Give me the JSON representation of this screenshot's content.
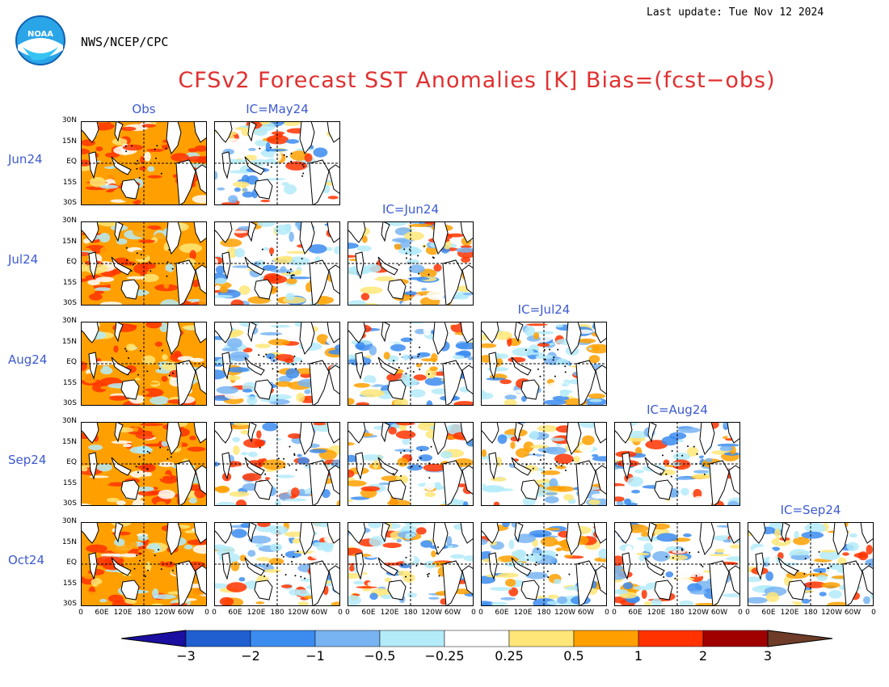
{
  "header": {
    "last_update": "Last update: Tue Nov 12 2024",
    "org": "NWS/NCEP/CPC",
    "title": "CFSv2 Forecast SST Anomalies [K] Bias=(fcst−obs)",
    "logo_text": "NOAA"
  },
  "columns": [
    "Obs",
    "IC=May24",
    "IC=Jun24",
    "IC=Jul24",
    "IC=Aug24",
    "IC=Sep24"
  ],
  "rows": [
    "Jun24",
    "Jul24",
    "Aug24",
    "Sep24",
    "Oct24"
  ],
  "lat_ticks": [
    "30N",
    "15N",
    "EQ",
    "15S",
    "30S"
  ],
  "lon_ticks": [
    "0",
    "60E",
    "120E",
    "180",
    "120W",
    "60W",
    "0"
  ],
  "colorbar": {
    "labels": [
      "−3",
      "−2",
      "−1",
      "−0.5",
      "−0.25",
      "0.25",
      "0.5",
      "1",
      "2",
      "3"
    ],
    "colors": [
      "#1a0fa0",
      "#1f5fd0",
      "#3c8cf0",
      "#78b4f2",
      "#b4ebf9",
      "#ffffff",
      "#ffe678",
      "#ffa000",
      "#ff3200",
      "#a00000",
      "#6e3c28"
    ]
  },
  "chart_data": {
    "type": "heatmap",
    "title": "CFSv2 Forecast SST Anomalies [K] Bias=(fcst−obs)",
    "units": "K",
    "columns": [
      "Obs",
      "IC=May24",
      "IC=Jun24",
      "IC=Jul24",
      "IC=Aug24",
      "IC=Sep24"
    ],
    "rows": [
      "Jun24",
      "Jul24",
      "Aug24",
      "Sep24",
      "Oct24"
    ],
    "panels_present": [
      [
        true,
        true,
        false,
        false,
        false,
        false
      ],
      [
        true,
        true,
        true,
        false,
        false,
        false
      ],
      [
        true,
        true,
        true,
        true,
        false,
        false
      ],
      [
        true,
        true,
        true,
        true,
        true,
        false
      ],
      [
        true,
        true,
        true,
        true,
        true,
        true
      ]
    ],
    "x_axis": {
      "range": [
        "0",
        "0"
      ],
      "ticks": [
        "0",
        "60E",
        "120E",
        "180",
        "120W",
        "60W",
        "0"
      ]
    },
    "y_axis": {
      "range": [
        "30S",
        "30N"
      ],
      "ticks": [
        "30N",
        "15N",
        "EQ",
        "15S",
        "30S"
      ]
    },
    "color_levels": [
      -3,
      -2,
      -1,
      -0.5,
      -0.25,
      0.25,
      0.5,
      1,
      2,
      3
    ],
    "panel_tendency": {
      "Obs": "warm",
      "forecast": "mixed, mostly cool (blue) in central tropics"
    }
  }
}
